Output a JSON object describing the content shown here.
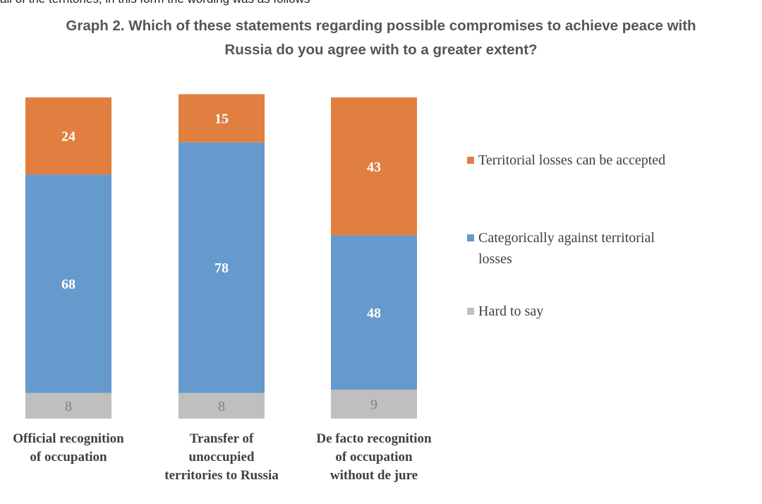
{
  "header": {
    "cut_text": "all of the territories, in this form the wording was as follows",
    "title_lines": [
      "Graph 2. Which of these statements regarding possible compromises to achieve peace with",
      "Russia do you agree with to a greater extent?"
    ]
  },
  "chart_data": {
    "type": "bar",
    "stacked": true,
    "orientation": "vertical",
    "categories": [
      [
        "Official recognition",
        "of occupation"
      ],
      [
        "Transfer of",
        "unoccupied",
        "territories to Russia"
      ],
      [
        "De facto recognition",
        "of occupation",
        "without de jure"
      ]
    ],
    "series": [
      {
        "name": "Hard to say",
        "values": [
          8,
          8,
          9
        ],
        "color": "#bfbfbf",
        "label_color": "#7f7f7f"
      },
      {
        "name": "Categorically against territorial losses",
        "values": [
          68,
          78,
          48
        ],
        "color": "#6699cc",
        "label_color": "#ffffff"
      },
      {
        "name": "Territorial losses can be accepted",
        "values": [
          24,
          15,
          43
        ],
        "color": "#e07f3f",
        "label_color": "#ffffff"
      }
    ],
    "ylim": [
      0,
      100
    ],
    "grid": false,
    "legend": {
      "position": "right",
      "items": [
        {
          "lines": [
            "Territorial losses can be accepted"
          ],
          "color": "#e07f3f"
        },
        {
          "lines": [
            "Categorically against territorial",
            "losses"
          ],
          "color": "#6699cc"
        },
        {
          "lines": [
            "Hard to say"
          ],
          "color": "#bfbfbf"
        }
      ]
    }
  }
}
